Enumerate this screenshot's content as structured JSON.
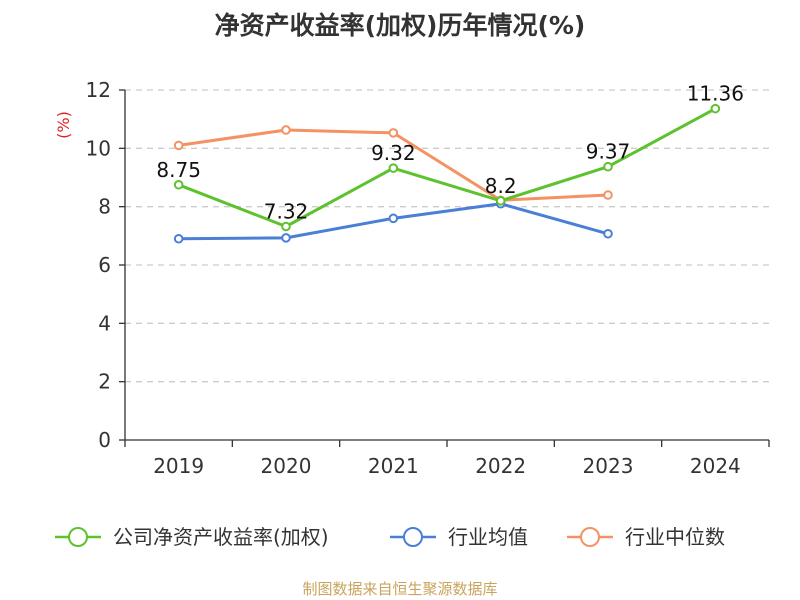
{
  "chart_data": {
    "type": "line",
    "title": "净资产收益率(加权)历年情况(%)",
    "unit_label": "(%)",
    "categories": [
      "2019",
      "2020",
      "2021",
      "2022",
      "2023",
      "2024"
    ],
    "ylim": [
      0,
      12
    ],
    "yticks": [
      0,
      2,
      4,
      6,
      8,
      10,
      12
    ],
    "grid": "horizontal-dashed",
    "legend_position": "bottom",
    "series": [
      {
        "name": "公司净资产收益率(加权)",
        "color": "#5dc22e",
        "values": [
          8.75,
          7.32,
          9.32,
          8.2,
          9.37,
          11.36
        ],
        "labels": [
          "8.75",
          "7.32",
          "9.32",
          "8.2",
          "9.37",
          "11.36"
        ]
      },
      {
        "name": "行业均值",
        "color": "#4a7fd6",
        "values": [
          6.9,
          6.93,
          7.6,
          8.1,
          7.07,
          null
        ]
      },
      {
        "name": "行业中位数",
        "color": "#f39262",
        "values": [
          10.1,
          10.63,
          10.53,
          8.22,
          8.4,
          null
        ]
      }
    ],
    "colors": {
      "unit_label": "#dd2222",
      "gridline": "#cccccc",
      "axis": "#333333"
    }
  },
  "source": "制图数据来自恒生聚源数据库"
}
